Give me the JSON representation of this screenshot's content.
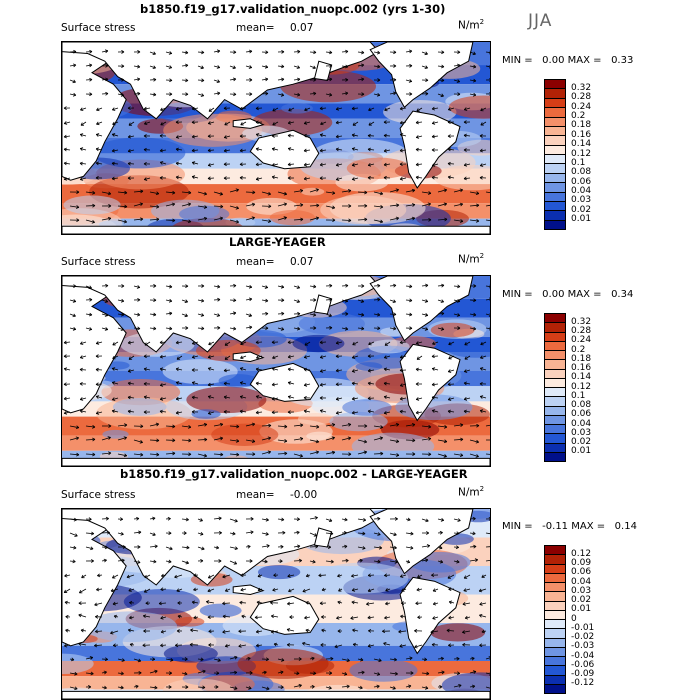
{
  "season": "JJA",
  "panels": [
    {
      "title": "b1850.f19_g17.validation_nuopc.002 (yrs 1-30)",
      "field": "Surface stress",
      "mean_label": "mean=",
      "mean_value": "0.07",
      "unit_main": "N/m",
      "unit_sup": "2",
      "min_label": "MIN =",
      "min_value": "0.00",
      "max_label": "MAX =",
      "max_value": "0.33",
      "scale": "positive",
      "levels": [
        "0.32",
        "0.28",
        "0.24",
        "0.2",
        "0.18",
        "0.16",
        "0.14",
        "0.12",
        "0.1",
        "0.08",
        "0.06",
        "0.04",
        "0.03",
        "0.02",
        "0.01"
      ],
      "colors": [
        "#8b0000",
        "#b22206",
        "#d63e17",
        "#ec6a3e",
        "#f4906a",
        "#f8b494",
        "#fbd2be",
        "#fdebe0",
        "#dfeaf9",
        "#bcd2f4",
        "#97b6ec",
        "#6f95e3",
        "#4875dc",
        "#2357d4",
        "#0b2fb0",
        "#00108a"
      ]
    },
    {
      "title": "LARGE-YEAGER",
      "field": "Surface stress",
      "mean_label": "mean=",
      "mean_value": "0.07",
      "unit_main": "N/m",
      "unit_sup": "2",
      "min_label": "MIN =",
      "min_value": "0.00",
      "max_label": "MAX =",
      "max_value": "0.34",
      "scale": "positive",
      "levels": [
        "0.32",
        "0.28",
        "0.24",
        "0.2",
        "0.18",
        "0.16",
        "0.14",
        "0.12",
        "0.1",
        "0.08",
        "0.06",
        "0.04",
        "0.03",
        "0.02",
        "0.01"
      ],
      "colors": [
        "#8b0000",
        "#b22206",
        "#d63e17",
        "#ec6a3e",
        "#f4906a",
        "#f8b494",
        "#fbd2be",
        "#fdebe0",
        "#dfeaf9",
        "#bcd2f4",
        "#97b6ec",
        "#6f95e3",
        "#4875dc",
        "#2357d4",
        "#0b2fb0",
        "#00108a"
      ]
    },
    {
      "title": "b1850.f19_g17.validation_nuopc.002 - LARGE-YEAGER",
      "field": "Surface stress",
      "mean_label": "mean=",
      "mean_value": "-0.00",
      "unit_main": "N/m",
      "unit_sup": "2",
      "min_label": "MIN =",
      "min_value": "-0.11",
      "max_label": "MAX =",
      "max_value": "0.14",
      "scale": "diverging",
      "levels": [
        "0.12",
        "0.09",
        "0.06",
        "0.04",
        "0.03",
        "0.02",
        "0.01",
        "0",
        "-0.01",
        "-0.02",
        "-0.03",
        "-0.04",
        "-0.06",
        "-0.09",
        "-0.12"
      ],
      "colors": [
        "#8b0000",
        "#b22206",
        "#d63e17",
        "#ec6a3e",
        "#f4906a",
        "#f8b494",
        "#fbd2be",
        "#fdebe0",
        "#dfeaf9",
        "#bcd2f4",
        "#97b6ec",
        "#6f95e3",
        "#4875dc",
        "#2357d4",
        "#0b2fb0",
        "#00108a"
      ]
    }
  ]
}
